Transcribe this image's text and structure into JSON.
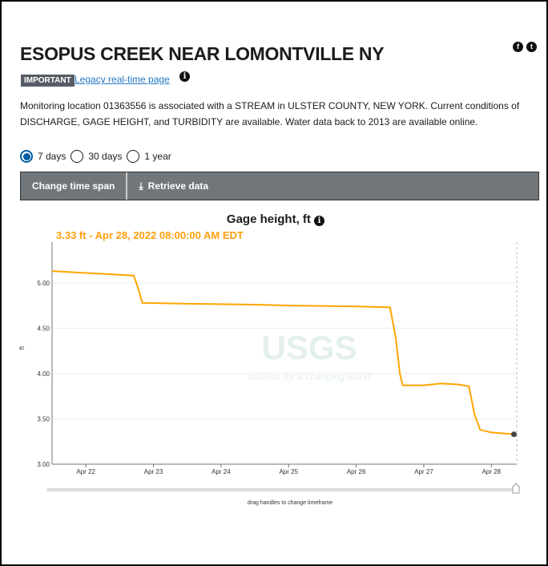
{
  "header": {
    "title": "ESOPUS CREEK NEAR LOMONTVILLE NY",
    "badge": "IMPORTANT",
    "legacy_link": "Legacy real-time page",
    "social": [
      "facebook-icon",
      "twitter-icon"
    ]
  },
  "description": "Monitoring location 01363556 is associated with a STREAM in ULSTER COUNTY, NEW YORK. Current conditions of DISCHARGE, GAGE HEIGHT, and TURBIDITY are available. Water data back to 2013 are available online.",
  "timespan": {
    "options": [
      "7 days",
      "30 days",
      "1 year"
    ],
    "selected": "7 days"
  },
  "toolbar": {
    "change": "Change time span",
    "retrieve": "Retrieve data"
  },
  "tooltip": "3.33 ft - Apr 28, 2022 08:00:00 AM EDT",
  "slider_hint": "drag handles to change timeframe",
  "watermark": {
    "logo": "USGS",
    "tagline": "science for a changing world"
  },
  "chart_data": {
    "type": "line",
    "title": "Gage height, ft",
    "ylabel": "ft",
    "ylim": [
      3.0,
      5.45
    ],
    "xlim": [
      "2022-04-21T12:00",
      "2022-04-28T09:00"
    ],
    "yticks": [
      "3.00",
      "3.50",
      "4.00",
      "4.50",
      "5.00"
    ],
    "xticks": [
      "Apr 22",
      "Apr 23",
      "Apr 24",
      "Apr 25",
      "Apr 26",
      "Apr 27",
      "Apr 28"
    ],
    "grid": true,
    "color": "#ffa500",
    "points": [
      [
        "2022-04-21T12:00",
        5.13
      ],
      [
        "2022-04-22T00:00",
        5.11
      ],
      [
        "2022-04-22T12:00",
        5.09
      ],
      [
        "2022-04-22T17:00",
        5.08
      ],
      [
        "2022-04-22T19:00",
        4.9
      ],
      [
        "2022-04-22T20:00",
        4.78
      ],
      [
        "2022-04-23T12:00",
        4.77
      ],
      [
        "2022-04-24T12:00",
        4.76
      ],
      [
        "2022-04-25T00:00",
        4.75
      ],
      [
        "2022-04-26T00:00",
        4.74
      ],
      [
        "2022-04-26T12:00",
        4.73
      ],
      [
        "2022-04-26T14:00",
        4.4
      ],
      [
        "2022-04-26T15:30",
        4.0
      ],
      [
        "2022-04-26T16:30",
        3.87
      ],
      [
        "2022-04-27T00:00",
        3.87
      ],
      [
        "2022-04-27T06:00",
        3.89
      ],
      [
        "2022-04-27T12:00",
        3.88
      ],
      [
        "2022-04-27T16:00",
        3.86
      ],
      [
        "2022-04-27T18:00",
        3.55
      ],
      [
        "2022-04-27T20:00",
        3.38
      ],
      [
        "2022-04-28T00:00",
        3.35
      ],
      [
        "2022-04-28T08:00",
        3.33
      ]
    ],
    "highlight": [
      "2022-04-28T08:00",
      3.33
    ]
  }
}
